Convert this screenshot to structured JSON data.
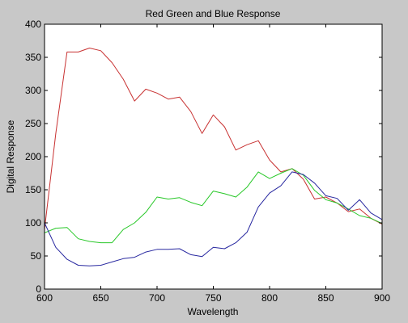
{
  "chart_data": {
    "type": "line",
    "title": "Red Green and Blue Response",
    "xlabel": "Wavelength",
    "ylabel": "Digital Response",
    "xlim": [
      600,
      900
    ],
    "ylim": [
      0,
      400
    ],
    "xticks": [
      600,
      650,
      700,
      750,
      800,
      850,
      900
    ],
    "yticks": [
      0,
      50,
      100,
      150,
      200,
      250,
      300,
      350,
      400
    ],
    "grid": false,
    "x": [
      600,
      610,
      620,
      630,
      640,
      650,
      660,
      670,
      680,
      690,
      700,
      710,
      720,
      730,
      740,
      750,
      760,
      770,
      780,
      790,
      800,
      810,
      820,
      830,
      840,
      850,
      860,
      870,
      880,
      890,
      900
    ],
    "series": [
      {
        "color": "#c83232",
        "values": [
          90,
          235,
          358,
          358,
          364,
          360,
          342,
          317,
          284,
          302,
          296,
          287,
          290,
          268,
          235,
          263,
          245,
          210,
          218,
          224,
          195,
          177,
          182,
          166,
          136,
          139,
          130,
          117,
          121,
          107,
          98
        ]
      },
      {
        "color": "#28c828",
        "values": [
          85,
          92,
          93,
          76,
          72,
          70,
          70,
          90,
          100,
          116,
          139,
          136,
          138,
          131,
          126,
          148,
          144,
          139,
          154,
          177,
          167,
          175,
          182,
          172,
          149,
          135,
          130,
          121,
          111,
          107,
          99
        ]
      },
      {
        "color": "#2828a0",
        "values": [
          100,
          63,
          45,
          36,
          35,
          36,
          41,
          46,
          48,
          56,
          60,
          60,
          61,
          52,
          49,
          63,
          61,
          70,
          86,
          124,
          145,
          156,
          177,
          173,
          160,
          141,
          137,
          119,
          135,
          115,
          105
        ]
      }
    ]
  }
}
